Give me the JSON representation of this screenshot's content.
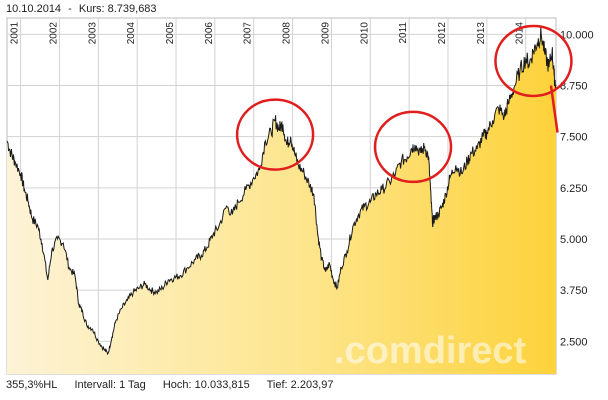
{
  "header": {
    "date": "10.10.2014",
    "separator": "-",
    "price_label": "Kurs:",
    "price_value": "8.739,683"
  },
  "footer": {
    "change": "355,3%HL",
    "interval_label": "Intervall:",
    "interval_value": "1 Tag",
    "high_label": "Hoch:",
    "high_value": "10.033,815",
    "low_label": "Tief:",
    "low_value": "2.203,97"
  },
  "watermark": ".comdirect",
  "colors": {
    "fill_light": "#fdf3d6",
    "fill_dark": "#fdd64a",
    "line": "#1a1a1a",
    "grid": "#cfcfcf",
    "circle": "#e11d1d",
    "arrow": "#e11d1d"
  },
  "chart_data": {
    "type": "area",
    "title": "",
    "xlabel": "",
    "ylabel": "",
    "x_tick_labels": [
      "2001",
      "2002",
      "2003",
      "2004",
      "2005",
      "2006",
      "2007",
      "2008",
      "2009",
      "2010",
      "2011",
      "2012",
      "2013",
      "2014"
    ],
    "x_range": [
      2000.65,
      2014.78
    ],
    "y_tick_labels": [
      "2.500",
      "3.750",
      "5.000",
      "6.250",
      "7.500",
      "8.750",
      "10.000"
    ],
    "y_ticks": [
      2500,
      3750,
      5000,
      6250,
      7500,
      8750,
      10000
    ],
    "ylim": [
      1700,
      10400
    ],
    "grid": true,
    "series": [
      {
        "x": [
          2000.65,
          2000.75,
          2000.85,
          2001.0,
          2001.1,
          2001.2,
          2001.3,
          2001.45,
          2001.55,
          2001.7,
          2001.8,
          2001.95,
          2002.1,
          2002.25,
          2002.4,
          2002.5,
          2002.6,
          2002.7,
          2002.85,
          2003.0,
          2003.15,
          2003.25,
          2003.35,
          2003.45,
          2003.6,
          2003.75,
          2003.9,
          2004.05,
          2004.2,
          2004.35,
          2004.5,
          2004.65,
          2004.8,
          2004.95,
          2005.1,
          2005.3,
          2005.5,
          2005.65,
          2005.8,
          2005.95,
          2006.1,
          2006.3,
          2006.45,
          2006.6,
          2006.8,
          2007.0,
          2007.15,
          2007.3,
          2007.45,
          2007.55,
          2007.65,
          2007.75,
          2007.85,
          2007.95,
          2008.05,
          2008.15,
          2008.3,
          2008.45,
          2008.55,
          2008.65,
          2008.75,
          2008.85,
          2008.95,
          2009.05,
          2009.15,
          2009.25,
          2009.4,
          2009.55,
          2009.7,
          2009.85,
          2010.0,
          2010.15,
          2010.3,
          2010.5,
          2010.65,
          2010.8,
          2010.95,
          2011.05,
          2011.15,
          2011.3,
          2011.4,
          2011.5,
          2011.55,
          2011.6,
          2011.65,
          2011.75,
          2011.85,
          2011.95,
          2012.05,
          2012.2,
          2012.35,
          2012.5,
          2012.6,
          2012.75,
          2012.9,
          2013.0,
          2013.15,
          2013.3,
          2013.45,
          2013.55,
          2013.7,
          2013.85,
          2014.0,
          2014.1,
          2014.2,
          2014.3,
          2014.4,
          2014.5,
          2014.6,
          2014.68,
          2014.73,
          2014.78
        ],
        "y": [
          7400,
          7100,
          6900,
          6600,
          6200,
          5900,
          5500,
          5300,
          4900,
          4000,
          4700,
          5000,
          4900,
          4300,
          4100,
          3400,
          3200,
          2900,
          2800,
          2500,
          2300,
          2200,
          2600,
          3000,
          3300,
          3500,
          3700,
          3800,
          3900,
          3750,
          3700,
          3800,
          4000,
          4050,
          4100,
          4300,
          4500,
          4600,
          4800,
          5100,
          5300,
          5800,
          5600,
          5900,
          6200,
          6500,
          6700,
          7400,
          7600,
          7900,
          7700,
          7800,
          7300,
          7500,
          7100,
          6800,
          6600,
          6300,
          6100,
          5100,
          4500,
          4200,
          4400,
          4000,
          3800,
          4300,
          4700,
          5300,
          5600,
          5800,
          5900,
          6100,
          6200,
          6400,
          6600,
          6900,
          7000,
          7200,
          7300,
          7100,
          7250,
          7000,
          6200,
          5400,
          5500,
          5600,
          5800,
          6100,
          6500,
          6800,
          6600,
          6900,
          7100,
          7200,
          7500,
          7600,
          7900,
          8200,
          8000,
          8300,
          8700,
          9100,
          9400,
          9300,
          9600,
          9800,
          10000,
          9500,
          9200,
          9600,
          9000,
          8740
        ]
      }
    ],
    "annotations": [
      {
        "type": "circle",
        "x": 2007.55,
        "y": 7550
      },
      {
        "type": "circle",
        "x": 2011.1,
        "y": 7250
      },
      {
        "type": "circle",
        "x": 2014.2,
        "y": 9350
      },
      {
        "type": "arrow",
        "from": [
          2014.65,
          8750
        ],
        "to": [
          2014.82,
          7600
        ]
      }
    ]
  }
}
